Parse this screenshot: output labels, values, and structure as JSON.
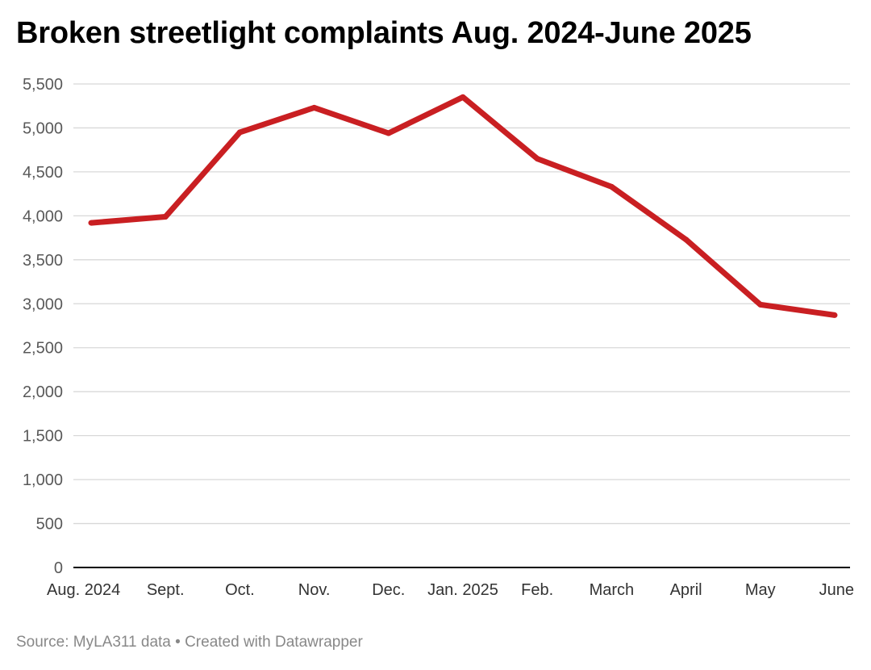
{
  "chart_data": {
    "type": "line",
    "title": "Broken streetlight complaints Aug. 2024-June 2025",
    "categories": [
      "Aug. 2024",
      "Sept.",
      "Oct.",
      "Nov.",
      "Dec.",
      "Jan. 2025",
      "Feb.",
      "March",
      "April",
      "May",
      "June"
    ],
    "series": [
      {
        "values": [
          3920,
          3990,
          4950,
          5230,
          4940,
          5350,
          4650,
          4330,
          3730,
          2990,
          2870
        ]
      }
    ],
    "ylim": [
      0,
      5500
    ],
    "yticks": [
      0,
      500,
      1000,
      1500,
      2000,
      2500,
      3000,
      3500,
      4000,
      4500,
      5000,
      5500
    ],
    "ytick_labels": [
      "0",
      "500",
      "1,000",
      "1,500",
      "2,000",
      "2,500",
      "3,000",
      "3,500",
      "4,000",
      "4,500",
      "5,000",
      "5,500"
    ],
    "grid": true,
    "colors": {
      "line": "#c91f22",
      "grid": "#d8d8d8",
      "axis": "#000000",
      "tick_text": "#595959"
    }
  },
  "footer": {
    "source": "Source: MyLA311 data",
    "separator": "•",
    "credit": "Created with Datawrapper",
    "text": "Source: MyLA311 data • Created with Datawrapper"
  }
}
